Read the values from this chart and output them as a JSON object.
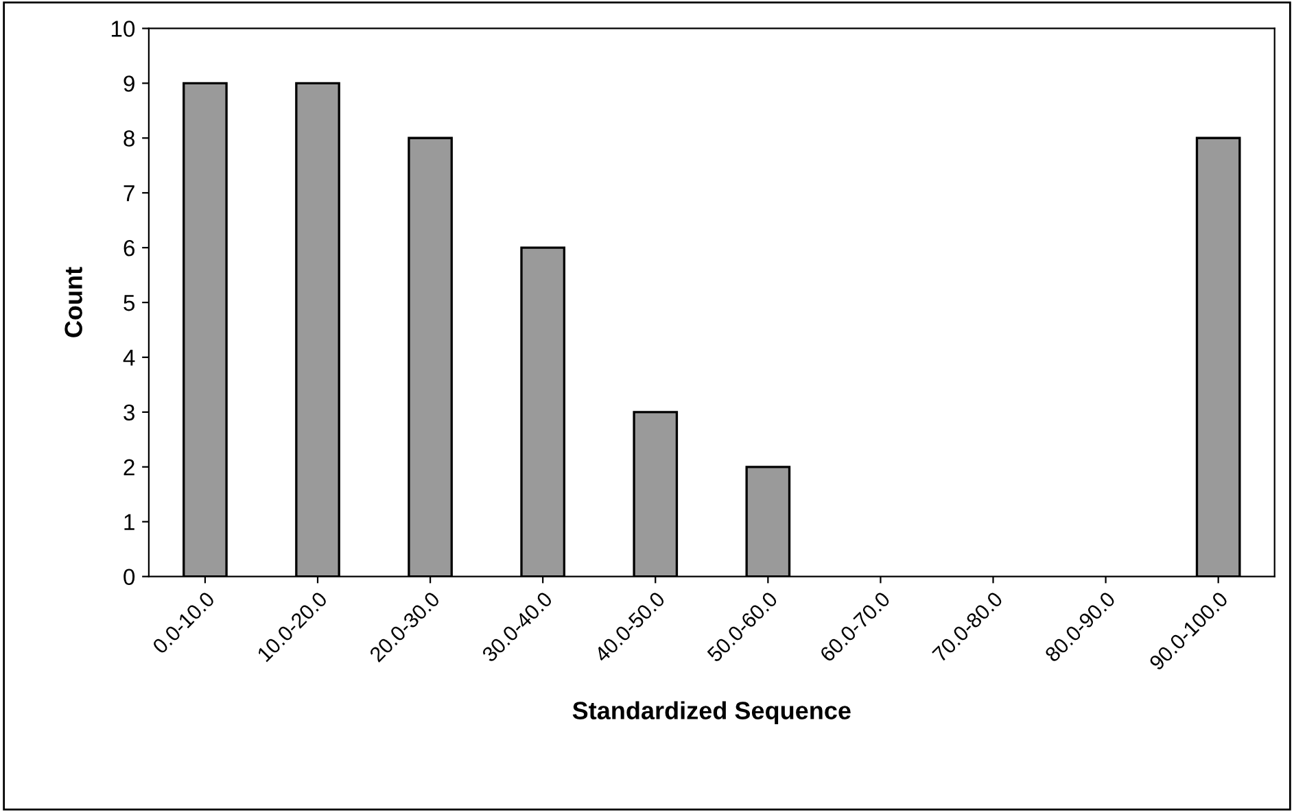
{
  "chart_data": {
    "type": "bar",
    "xlabel": "Standardized Sequence",
    "ylabel": "Count",
    "categories": [
      "0.0-10.0",
      "10.0-20.0",
      "20.0-30.0",
      "30.0-40.0",
      "40.0-50.0",
      "50.0-60.0",
      "60.0-70.0",
      "70.0-80.0",
      "80.0-90.0",
      "90.0-100.0"
    ],
    "values": [
      9,
      9,
      8,
      6,
      3,
      2,
      0,
      0,
      0,
      8
    ],
    "color": "#9a9a9a",
    "ylim": [
      0,
      10
    ],
    "yticks": [
      0,
      1,
      2,
      3,
      4,
      5,
      6,
      7,
      8,
      9,
      10
    ],
    "grid": false,
    "legend": false
  }
}
